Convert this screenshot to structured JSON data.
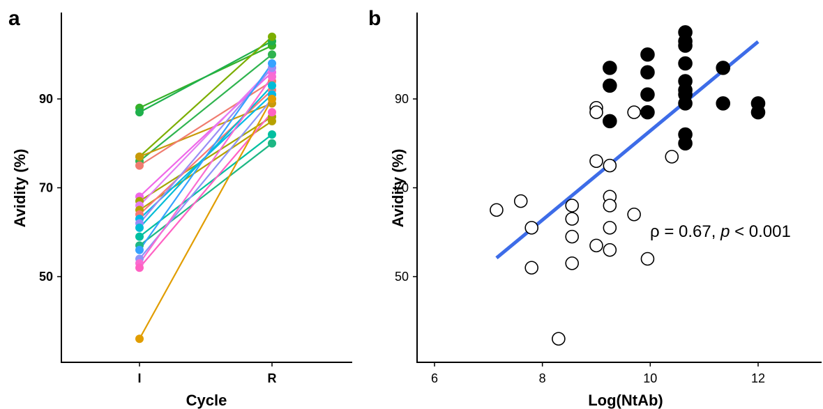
{
  "chart_data": [
    {
      "panel_label": "a",
      "type": "line",
      "xlabel": "Cycle",
      "ylabel": "Avidity (%)",
      "categories": [
        "I",
        "R"
      ],
      "yticks": [
        50,
        70,
        90
      ],
      "ylim": [
        40,
        100
      ],
      "grid": false,
      "legend": "none",
      "series": [
        {
          "values": [
            88,
            102
          ],
          "color": "#35B12A"
        },
        {
          "values": [
            87,
            103
          ],
          "color": "#1FB04C"
        },
        {
          "values": [
            77,
            104
          ],
          "color": "#7CAE00"
        },
        {
          "values": [
            76,
            100
          ],
          "color": "#2FB44F"
        },
        {
          "values": [
            77,
            89
          ],
          "color": "#C89A0A"
        },
        {
          "values": [
            75,
            94
          ],
          "color": "#F07C70"
        },
        {
          "values": [
            68,
            96
          ],
          "color": "#F066E8"
        },
        {
          "values": [
            67,
            86
          ],
          "color": "#A3A500"
        },
        {
          "values": [
            66,
            97
          ],
          "color": "#E47DF3"
        },
        {
          "values": [
            65,
            85
          ],
          "color": "#B7A100"
        },
        {
          "values": [
            64,
            92
          ],
          "color": "#FA7876"
        },
        {
          "values": [
            63,
            91
          ],
          "color": "#00B8E7"
        },
        {
          "values": [
            62,
            97
          ],
          "color": "#9B8CF5"
        },
        {
          "values": [
            61,
            93
          ],
          "color": "#00BCD6"
        },
        {
          "values": [
            59,
            82
          ],
          "color": "#00BFA0"
        },
        {
          "values": [
            57,
            80
          ],
          "color": "#1DB784"
        },
        {
          "values": [
            56,
            98
          ],
          "color": "#35A2FF"
        },
        {
          "values": [
            54,
            90
          ],
          "color": "#8E94F7"
        },
        {
          "values": [
            53,
            95
          ],
          "color": "#F86CD2"
        },
        {
          "values": [
            52,
            87
          ],
          "color": "#FF61C3"
        },
        {
          "values": [
            36,
            90
          ],
          "color": "#E19D00"
        }
      ]
    },
    {
      "panel_label": "b",
      "type": "scatter",
      "xlabel": "Log(NtAb)",
      "ylabel": "Avidity (%)",
      "xticks": [
        6,
        8,
        10,
        12
      ],
      "yticks": [
        50,
        70,
        90
      ],
      "xlim": [
        5.5,
        13.5
      ],
      "ylim": [
        40,
        100
      ],
      "grid": false,
      "legend": "none",
      "annotation": {
        "prefix": "ρ = 0.67, ",
        "italic": "p",
        "suffix": " < 0.001"
      },
      "series": [
        {
          "marker": "open-circle",
          "points": [
            [
              7.15,
              65
            ],
            [
              7.6,
              67
            ],
            [
              7.8,
              61
            ],
            [
              7.8,
              52
            ],
            [
              8.3,
              36
            ],
            [
              8.55,
              66
            ],
            [
              8.55,
              63
            ],
            [
              8.55,
              59
            ],
            [
              8.55,
              53
            ],
            [
              9.0,
              88
            ],
            [
              9.0,
              87
            ],
            [
              9.0,
              76
            ],
            [
              9.0,
              57
            ],
            [
              9.25,
              75
            ],
            [
              9.25,
              68
            ],
            [
              9.25,
              66
            ],
            [
              9.25,
              61
            ],
            [
              9.25,
              56
            ],
            [
              9.7,
              87
            ],
            [
              9.7,
              64
            ],
            [
              9.95,
              54
            ],
            [
              10.4,
              77
            ]
          ]
        },
        {
          "marker": "filled-circle",
          "points": [
            [
              9.25,
              97
            ],
            [
              9.25,
              93
            ],
            [
              9.25,
              85
            ],
            [
              9.95,
              100
            ],
            [
              9.95,
              96
            ],
            [
              9.95,
              91
            ],
            [
              9.95,
              87
            ],
            [
              10.65,
              105
            ],
            [
              10.65,
              103
            ],
            [
              10.65,
              102
            ],
            [
              10.65,
              98
            ],
            [
              10.65,
              94
            ],
            [
              10.65,
              92
            ],
            [
              10.65,
              91
            ],
            [
              10.65,
              89
            ],
            [
              10.65,
              82
            ],
            [
              10.65,
              80
            ],
            [
              11.35,
              97
            ],
            [
              11.35,
              89
            ],
            [
              12.0,
              89
            ],
            [
              12.0,
              87
            ]
          ]
        },
        {
          "type": "regression-line",
          "color": "#3D6CE8",
          "x": [
            7.15,
            12.0
          ],
          "y": [
            54.2,
            102.9
          ]
        }
      ]
    }
  ]
}
